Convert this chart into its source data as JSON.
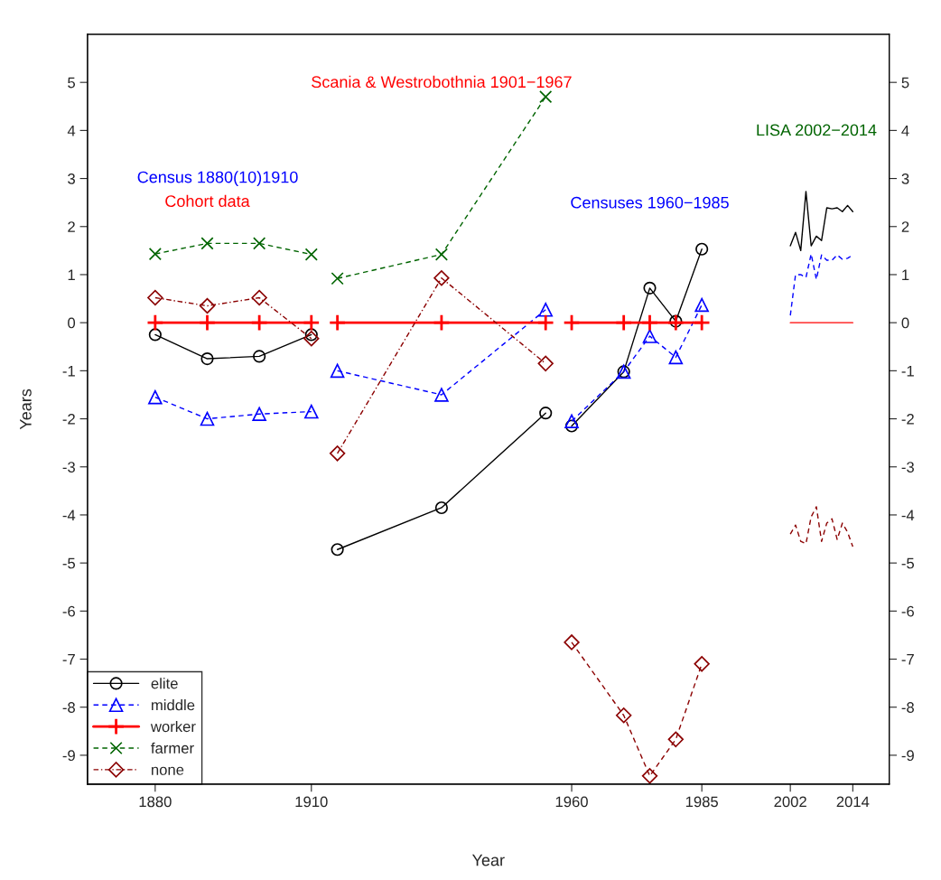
{
  "chart_data": {
    "type": "line",
    "xlabel": "Year",
    "ylabel": "Years",
    "annotations": [
      "Census 1880(10)1910",
      "Cohort data",
      "Scania & Westrobothnia 1901−1967",
      "Censuses 1960−1985",
      "LISA 2002−2014"
    ],
    "xlim": [
      1867,
      2021
    ],
    "xticks": [
      1880,
      1910,
      1960,
      1985,
      2002,
      2014
    ],
    "ylim": [
      -9.6,
      6.0
    ],
    "yticks": [
      -9,
      -8,
      -7,
      -6,
      -5,
      -4,
      -3,
      -2,
      -1,
      0,
      1,
      2,
      3,
      4,
      5
    ],
    "y2lim": [
      -9.6,
      6.0
    ],
    "y2ticks": [
      -9,
      -8,
      -7,
      -6,
      -5,
      -4,
      -3,
      -2,
      -1,
      0,
      1,
      2,
      3,
      4,
      5
    ],
    "grid": false,
    "legend": "bottom left",
    "series": [
      {
        "name": "elite",
        "color": "#000000",
        "marker": "circle",
        "line_style": "solid",
        "x": [
          1880,
          1890,
          1900,
          1910
        ],
        "values": [
          -0.25,
          -0.75,
          -0.7,
          -0.25
        ]
      },
      {
        "name": "middle",
        "color": "#0000ff",
        "marker": "triangle",
        "line_style": "dashed",
        "x": [
          1880,
          1890,
          1900,
          1910
        ],
        "values": [
          -1.55,
          -2.0,
          -1.9,
          -1.85
        ]
      },
      {
        "name": "worker",
        "color": "#ff0000",
        "marker": "plus",
        "line_style": "solid",
        "x": [
          1880,
          1890,
          1900,
          1910
        ],
        "values": [
          0,
          0,
          0,
          0
        ]
      },
      {
        "name": "farmer",
        "color": "#006400",
        "marker": "cross",
        "line_style": "dashed",
        "x": [
          1880,
          1890,
          1900,
          1910
        ],
        "values": [
          1.43,
          1.65,
          1.65,
          1.42
        ]
      },
      {
        "name": "none",
        "color": "#8b0000",
        "marker": "diamond",
        "line_style": "dashdot",
        "x": [
          1880,
          1890,
          1900,
          1910
        ],
        "values": [
          0.52,
          0.35,
          0.52,
          -0.33
        ]
      },
      {
        "color": "#000000",
        "marker": "circle",
        "line_style": "solid",
        "x": [
          1915,
          1935,
          1955
        ],
        "values": [
          -4.72,
          -3.85,
          -1.88
        ]
      },
      {
        "color": "#0000ff",
        "marker": "triangle",
        "line_style": "dashed",
        "x": [
          1915,
          1935,
          1955
        ],
        "values": [
          -1.0,
          -1.5,
          0.27
        ]
      },
      {
        "color": "#ff0000",
        "marker": "plus",
        "line_style": "solid",
        "x": [
          1915,
          1935,
          1955
        ],
        "values": [
          0,
          0,
          0
        ]
      },
      {
        "color": "#006400",
        "marker": "cross",
        "line_style": "dashed",
        "x": [
          1915,
          1935,
          1955
        ],
        "values": [
          0.92,
          1.42,
          4.7
        ]
      },
      {
        "color": "#8b0000",
        "marker": "diamond",
        "line_style": "dashdot",
        "x": [
          1915,
          1935,
          1955
        ],
        "values": [
          -2.72,
          0.93,
          -0.85
        ]
      },
      {
        "color": "#000000",
        "marker": "circle",
        "line_style": "solid",
        "x": [
          1960,
          1970,
          1975,
          1980,
          1985
        ],
        "values": [
          -2.15,
          -1.02,
          0.72,
          0.03,
          1.53
        ]
      },
      {
        "color": "#0000ff",
        "marker": "triangle",
        "line_style": "dashed",
        "x": [
          1960,
          1970,
          1975,
          1980,
          1985
        ],
        "values": [
          -2.05,
          -1.02,
          -0.28,
          -0.72,
          0.37
        ]
      },
      {
        "color": "#ff0000",
        "marker": "plus",
        "line_style": "solid",
        "x": [
          1960,
          1970,
          1975,
          1980,
          1985
        ],
        "values": [
          0,
          0,
          0,
          0,
          0
        ]
      },
      {
        "color": "#8b0000",
        "marker": "diamond",
        "line_style": "dashed",
        "x": [
          1960,
          1970,
          1975,
          1980,
          1985
        ],
        "values": [
          -6.65,
          -8.17,
          -9.43,
          -8.67,
          -7.1
        ]
      },
      {
        "color": "#000000",
        "marker": "none",
        "line_style": "solid",
        "x": [
          2002,
          2003,
          2004,
          2005,
          2006,
          2007,
          2008,
          2009,
          2010,
          2011,
          2012,
          2013,
          2014
        ],
        "values": [
          1.6,
          1.88,
          1.5,
          2.73,
          1.6,
          1.8,
          1.71,
          2.39,
          2.37,
          2.39,
          2.31,
          2.44,
          2.31
        ]
      },
      {
        "color": "#0000ff",
        "marker": "none",
        "line_style": "dashed",
        "x": [
          2002,
          2003,
          2004,
          2005,
          2006,
          2007,
          2008,
          2009,
          2010,
          2011,
          2012,
          2013,
          2014
        ],
        "values": [
          0.15,
          1.0,
          1.0,
          0.94,
          1.43,
          0.9,
          1.41,
          1.3,
          1.3,
          1.41,
          1.32,
          1.34,
          1.41
        ]
      },
      {
        "color": "#ff0000",
        "marker": "none",
        "line_style": "solid",
        "x": [
          2002,
          2003,
          2004,
          2005,
          2006,
          2007,
          2008,
          2009,
          2010,
          2011,
          2012,
          2013,
          2014
        ],
        "values": [
          0,
          0,
          0,
          0,
          0,
          0,
          0,
          0,
          0,
          0,
          0,
          0,
          0
        ]
      },
      {
        "color": "#8b0000",
        "marker": "none",
        "line_style": "dashed",
        "x": [
          2002,
          2003,
          2004,
          2005,
          2006,
          2007,
          2008,
          2009,
          2010,
          2011,
          2012,
          2013,
          2014
        ],
        "values": [
          -4.4,
          -4.21,
          -4.55,
          -4.6,
          -4.04,
          -3.83,
          -4.55,
          -4.17,
          -4.08,
          -4.51,
          -4.17,
          -4.36,
          -4.66
        ]
      }
    ]
  }
}
